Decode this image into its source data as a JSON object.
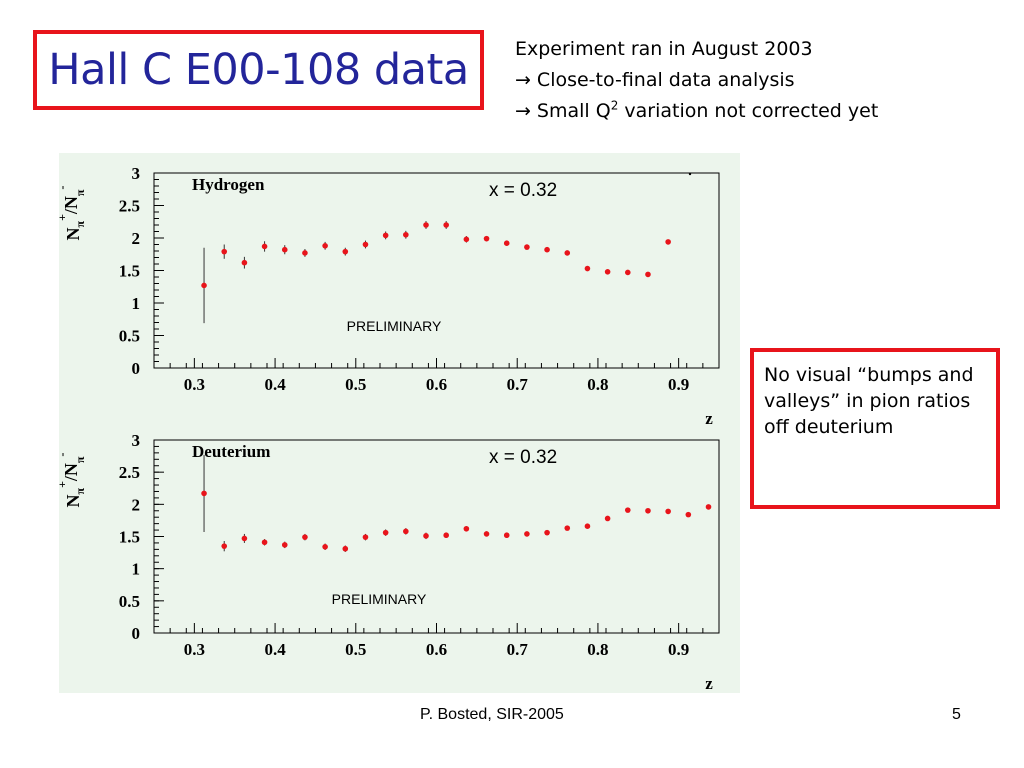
{
  "slide": {
    "title": "Hall C E00-108 data",
    "notes": {
      "line1": "Experiment ran in August 2003",
      "arrow": "→",
      "line2": "Close-to-final data analysis",
      "line3_pre": "Small Q",
      "line3_sup": "2",
      "line3_post": " variation not corrected yet"
    },
    "callout": "No visual “bumps and valleys” in pion ratios off deuterium",
    "footer": "P. Bosted,  SIR-2005",
    "page_number": "5"
  },
  "colors": {
    "title_text": "#23259a",
    "box_border": "#e8141b",
    "plot_background": "#ecf5ec",
    "marker": "#e8141b"
  },
  "chart_data": [
    {
      "type": "scatter",
      "panel_label": "Hydrogen",
      "annotation": "x = 0.32",
      "watermark": "PRELIMINARY",
      "ylabel_main": "N",
      "ylabel_sub1": "π",
      "ylabel_sup1": "+",
      "ylabel_slash": "/N",
      "ylabel_sub2": "π",
      "ylabel_sup2": "-",
      "xlabel": "z",
      "xlim": [
        0.25,
        0.95
      ],
      "ylim": [
        0,
        3
      ],
      "xticks": [
        0.3,
        0.4,
        0.5,
        0.6,
        0.7,
        0.8,
        0.9
      ],
      "xtick_labels": [
        "0.3",
        "0.4",
        "0.5",
        "0.6",
        "0.7",
        "0.8",
        "0.9"
      ],
      "yticks": [
        0,
        0.5,
        1,
        1.5,
        2,
        2.5,
        3
      ],
      "ytick_labels": [
        "0",
        "0.5",
        "1",
        "1.5",
        "2",
        "2.5",
        "3"
      ],
      "points": [
        {
          "x": 0.312,
          "y": 1.27,
          "err": 0.58
        },
        {
          "x": 0.337,
          "y": 1.79,
          "err": 0.11
        },
        {
          "x": 0.362,
          "y": 1.62,
          "err": 0.09
        },
        {
          "x": 0.387,
          "y": 1.87,
          "err": 0.08
        },
        {
          "x": 0.412,
          "y": 1.82,
          "err": 0.07
        },
        {
          "x": 0.437,
          "y": 1.77,
          "err": 0.06
        },
        {
          "x": 0.462,
          "y": 1.88,
          "err": 0.06
        },
        {
          "x": 0.487,
          "y": 1.79,
          "err": 0.06
        },
        {
          "x": 0.512,
          "y": 1.9,
          "err": 0.06
        },
        {
          "x": 0.537,
          "y": 2.04,
          "err": 0.06
        },
        {
          "x": 0.562,
          "y": 2.05,
          "err": 0.06
        },
        {
          "x": 0.587,
          "y": 2.2,
          "err": 0.06
        },
        {
          "x": 0.612,
          "y": 2.2,
          "err": 0.06
        },
        {
          "x": 0.637,
          "y": 1.98,
          "err": 0.05
        },
        {
          "x": 0.662,
          "y": 1.99,
          "err": 0.04
        },
        {
          "x": 0.687,
          "y": 1.92,
          "err": 0.04
        },
        {
          "x": 0.712,
          "y": 1.86,
          "err": 0.04
        },
        {
          "x": 0.737,
          "y": 1.82,
          "err": 0.03
        },
        {
          "x": 0.762,
          "y": 1.77,
          "err": 0.03
        },
        {
          "x": 0.787,
          "y": 1.53,
          "err": 0.02
        },
        {
          "x": 0.812,
          "y": 1.48,
          "err": 0.02
        },
        {
          "x": 0.837,
          "y": 1.47,
          "err": 0.02
        },
        {
          "x": 0.862,
          "y": 1.44,
          "err": 0.02
        },
        {
          "x": 0.887,
          "y": 1.94,
          "err": 0.02
        }
      ]
    },
    {
      "type": "scatter",
      "panel_label": "Deuterium",
      "annotation": "x = 0.32",
      "watermark": "PRELIMINARY",
      "ylabel_main": "N",
      "ylabel_sub1": "π",
      "ylabel_sup1": "+",
      "ylabel_slash": "/N",
      "ylabel_sub2": "π",
      "ylabel_sup2": "-",
      "xlabel": "z",
      "xlim": [
        0.25,
        0.95
      ],
      "ylim": [
        0,
        3
      ],
      "xticks": [
        0.3,
        0.4,
        0.5,
        0.6,
        0.7,
        0.8,
        0.9
      ],
      "xtick_labels": [
        "0.3",
        "0.4",
        "0.5",
        "0.6",
        "0.7",
        "0.8",
        "0.9"
      ],
      "yticks": [
        0,
        0.5,
        1,
        1.5,
        2,
        2.5,
        3
      ],
      "ytick_labels": [
        "0",
        "0.5",
        "1",
        "1.5",
        "2",
        "2.5",
        "3"
      ],
      "points": [
        {
          "x": 0.312,
          "y": 2.17,
          "err": 0.6
        },
        {
          "x": 0.337,
          "y": 1.35,
          "err": 0.08
        },
        {
          "x": 0.362,
          "y": 1.47,
          "err": 0.07
        },
        {
          "x": 0.387,
          "y": 1.41,
          "err": 0.05
        },
        {
          "x": 0.412,
          "y": 1.37,
          "err": 0.05
        },
        {
          "x": 0.437,
          "y": 1.49,
          "err": 0.05
        },
        {
          "x": 0.462,
          "y": 1.34,
          "err": 0.05
        },
        {
          "x": 0.487,
          "y": 1.31,
          "err": 0.05
        },
        {
          "x": 0.512,
          "y": 1.49,
          "err": 0.05
        },
        {
          "x": 0.537,
          "y": 1.56,
          "err": 0.05
        },
        {
          "x": 0.562,
          "y": 1.58,
          "err": 0.05
        },
        {
          "x": 0.587,
          "y": 1.51,
          "err": 0.05
        },
        {
          "x": 0.612,
          "y": 1.52,
          "err": 0.04
        },
        {
          "x": 0.637,
          "y": 1.62,
          "err": 0.04
        },
        {
          "x": 0.662,
          "y": 1.54,
          "err": 0.04
        },
        {
          "x": 0.687,
          "y": 1.52,
          "err": 0.04
        },
        {
          "x": 0.712,
          "y": 1.54,
          "err": 0.03
        },
        {
          "x": 0.737,
          "y": 1.56,
          "err": 0.03
        },
        {
          "x": 0.762,
          "y": 1.63,
          "err": 0.03
        },
        {
          "x": 0.787,
          "y": 1.66,
          "err": 0.03
        },
        {
          "x": 0.812,
          "y": 1.78,
          "err": 0.02
        },
        {
          "x": 0.837,
          "y": 1.91,
          "err": 0.02
        },
        {
          "x": 0.862,
          "y": 1.9,
          "err": 0.02
        },
        {
          "x": 0.887,
          "y": 1.89,
          "err": 0.02
        },
        {
          "x": 0.912,
          "y": 1.84,
          "err": 0.02
        },
        {
          "x": 0.937,
          "y": 1.96,
          "err": 0.02
        }
      ]
    }
  ]
}
